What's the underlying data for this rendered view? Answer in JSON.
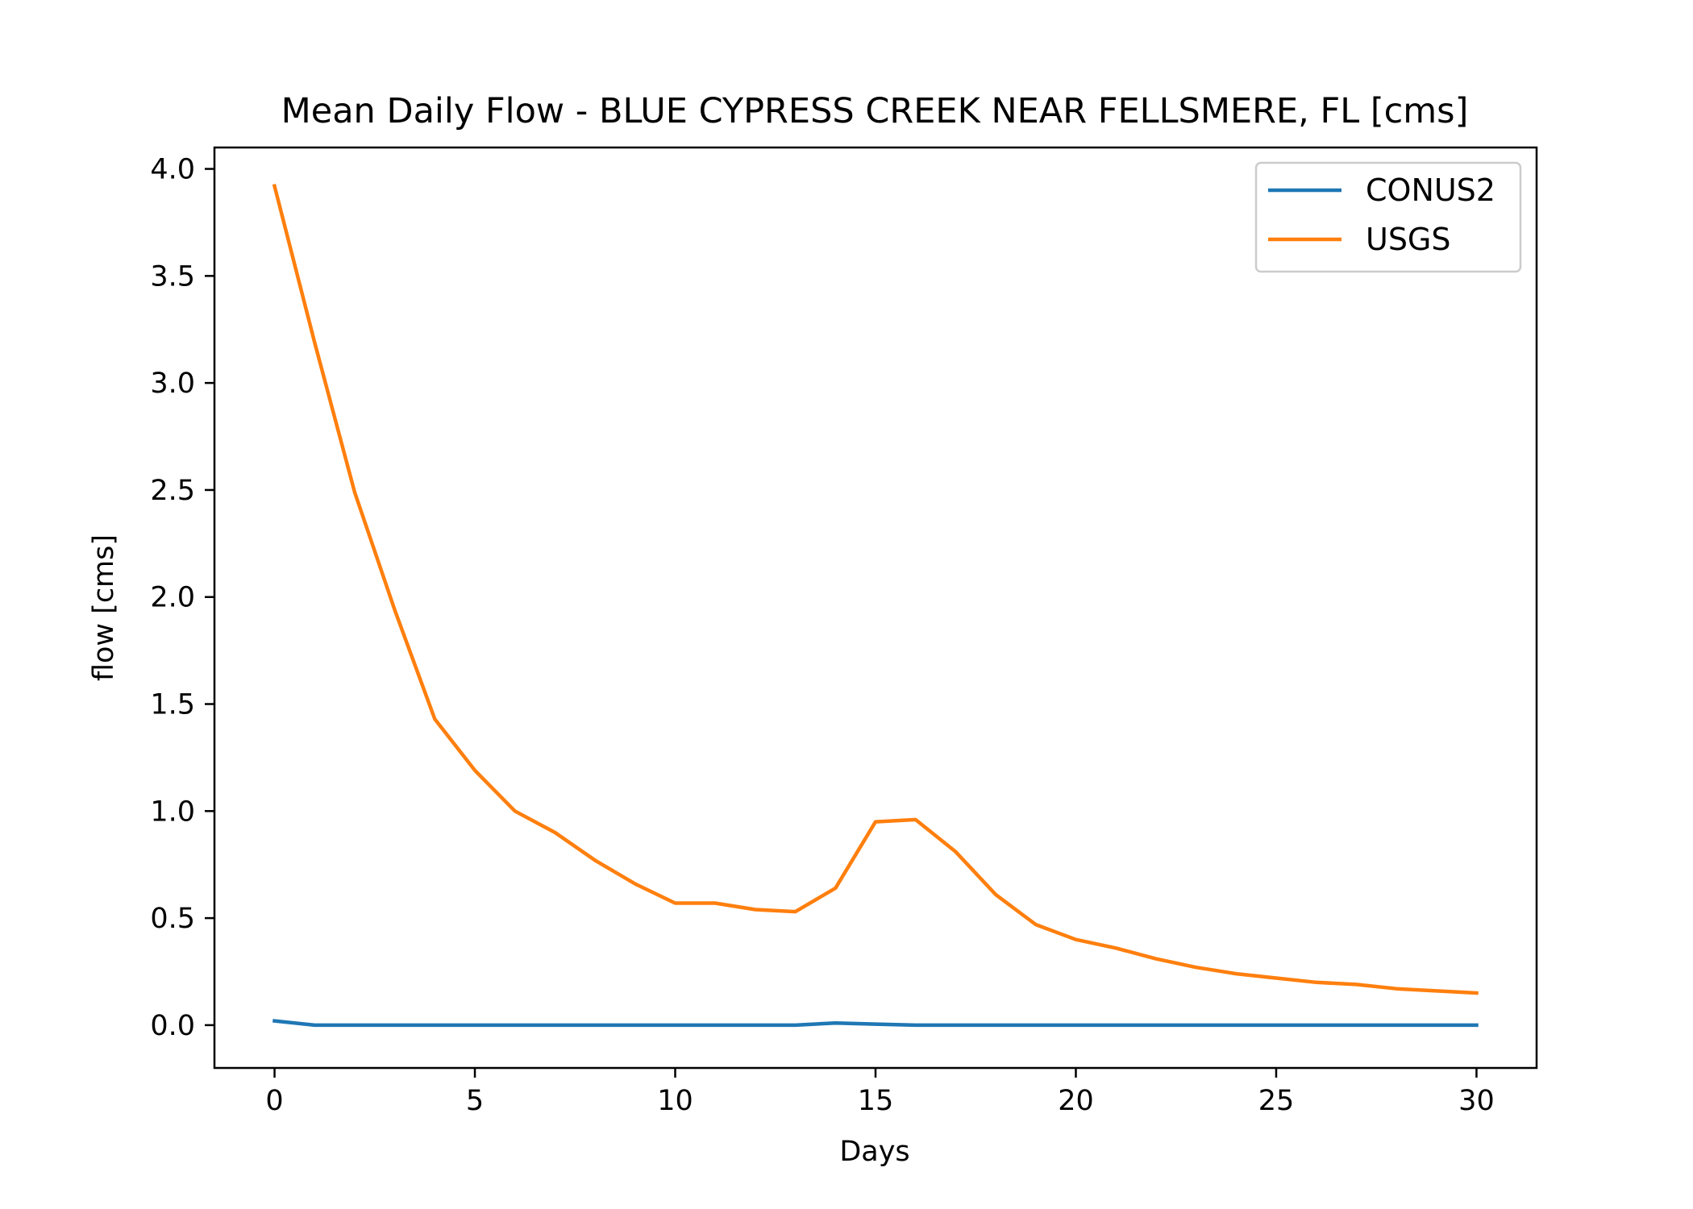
{
  "chart_data": {
    "type": "line",
    "title": "Mean Daily Flow - BLUE CYPRESS CREEK NEAR FELLSMERE, FL [cms]",
    "xlabel": "Days",
    "ylabel": "flow [cms]",
    "xlim": [
      -1.5,
      31.5
    ],
    "ylim": [
      -0.2,
      4.1
    ],
    "xticks": [
      0,
      5,
      10,
      15,
      20,
      25,
      30
    ],
    "xtick_labels": [
      "0",
      "5",
      "10",
      "15",
      "20",
      "25",
      "30"
    ],
    "yticks": [
      0.0,
      0.5,
      1.0,
      1.5,
      2.0,
      2.5,
      3.0,
      3.5,
      4.0
    ],
    "ytick_labels": [
      "0.0",
      "0.5",
      "1.0",
      "1.5",
      "2.0",
      "2.5",
      "3.0",
      "3.5",
      "4.0"
    ],
    "grid": false,
    "legend_position": "top-right",
    "x": [
      0,
      1,
      2,
      3,
      4,
      5,
      6,
      7,
      8,
      9,
      10,
      11,
      12,
      13,
      14,
      15,
      16,
      17,
      18,
      19,
      20,
      21,
      22,
      23,
      24,
      25,
      26,
      27,
      28,
      29,
      30
    ],
    "series": [
      {
        "name": "CONUS2",
        "color": "#1f77b4",
        "values": [
          0.02,
          0.0,
          0.0,
          0.0,
          0.0,
          0.0,
          0.0,
          0.0,
          0.0,
          0.0,
          0.0,
          0.0,
          0.0,
          0.0,
          0.01,
          0.005,
          0.0,
          0.0,
          0.0,
          0.0,
          0.0,
          0.0,
          0.0,
          0.0,
          0.0,
          0.0,
          0.0,
          0.0,
          0.0,
          0.0,
          0.0
        ]
      },
      {
        "name": "USGS",
        "color": "#ff7f0e",
        "values": [
          3.92,
          3.19,
          2.49,
          1.94,
          1.43,
          1.19,
          1.0,
          0.9,
          0.77,
          0.66,
          0.57,
          0.57,
          0.54,
          0.53,
          0.64,
          0.95,
          0.96,
          0.81,
          0.61,
          0.47,
          0.4,
          0.36,
          0.31,
          0.27,
          0.24,
          0.22,
          0.2,
          0.19,
          0.17,
          0.16,
          0.15
        ]
      }
    ]
  }
}
